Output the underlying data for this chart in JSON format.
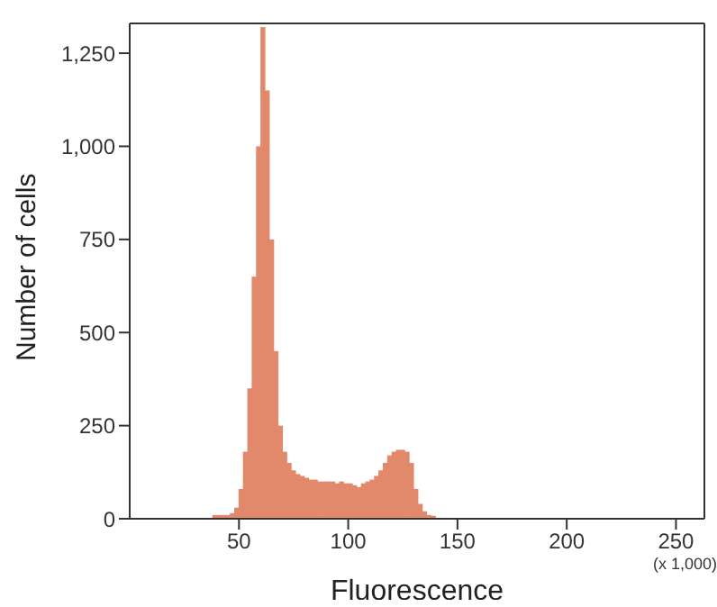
{
  "chart_data": {
    "type": "histogram",
    "xlabel": "Fluorescence",
    "ylabel": "Number of cells",
    "color": "#e2886b",
    "bins": [
      38,
      40,
      42,
      44,
      46,
      48,
      50,
      52,
      54,
      56,
      58,
      60,
      62,
      64,
      66,
      68,
      70,
      72,
      74,
      76,
      78,
      80,
      82,
      84,
      86,
      88,
      90,
      92,
      94,
      96,
      98,
      100,
      102,
      104,
      106,
      108,
      110,
      112,
      114,
      116,
      118,
      120,
      122,
      124,
      126,
      128,
      130,
      132,
      134,
      136,
      138,
      140
    ],
    "values": [
      10,
      10,
      10,
      10,
      15,
      30,
      80,
      180,
      350,
      650,
      1000,
      1320,
      1150,
      750,
      450,
      250,
      180,
      150,
      130,
      120,
      115,
      110,
      105,
      105,
      100,
      100,
      100,
      100,
      95,
      100,
      95,
      95,
      90,
      85,
      95,
      100,
      105,
      115,
      130,
      150,
      170,
      180,
      185,
      185,
      180,
      150,
      80,
      40,
      20,
      10,
      8
    ],
    "xlim": [
      0,
      263
    ],
    "xticks": [
      50,
      100,
      150,
      200,
      250
    ],
    "ylim": [
      0,
      1330
    ],
    "yticks": [
      0,
      250,
      500,
      750,
      {
        "value": 1000,
        "label": "1,000"
      },
      {
        "value": 1250,
        "label": "1,250"
      }
    ],
    "grid": false,
    "annotations": [
      "(x 1,000)"
    ]
  }
}
